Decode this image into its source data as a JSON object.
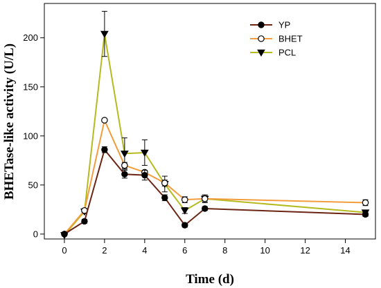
{
  "chart_data": {
    "type": "line",
    "title": "",
    "xlabel": "Time (d)",
    "ylabel": "BHETase-like activity (U/L)",
    "xlim": [
      -1,
      15.5
    ],
    "ylim": [
      -5,
      235
    ],
    "xticks": [
      "0",
      "2",
      "4",
      "6",
      "8",
      "10",
      "12",
      "14"
    ],
    "yticks": [
      "0",
      "50",
      "100",
      "150",
      "200"
    ],
    "grid": false,
    "legend_position": "top-right",
    "series": [
      {
        "name": "YP",
        "color": "#6b2412",
        "marker": "filled-circle",
        "x": [
          0,
          1,
          2,
          3,
          4,
          5,
          6,
          7,
          15
        ],
        "y": [
          0,
          13,
          86,
          61,
          60,
          37,
          9,
          26,
          20
        ],
        "err": [
          1,
          2,
          3,
          4,
          5,
          3,
          2,
          2,
          2
        ]
      },
      {
        "name": "BHET",
        "color": "#f39c3c",
        "marker": "open-circle",
        "x": [
          0,
          1,
          2,
          3,
          4,
          5,
          6,
          7,
          15
        ],
        "y": [
          0,
          24,
          116,
          70,
          63,
          52,
          35,
          36,
          32
        ],
        "err": [
          1,
          2,
          1,
          3,
          2,
          3,
          3,
          3,
          3
        ]
      },
      {
        "name": "PCL",
        "color": "#b5ba1e",
        "marker": "filled-triangle-down",
        "x": [
          0,
          1,
          2,
          3,
          4,
          5,
          6,
          7,
          15
        ],
        "y": [
          -1,
          23,
          204,
          82,
          83,
          51,
          24,
          36,
          22
        ],
        "err": [
          1,
          2,
          23,
          16,
          13,
          8,
          3,
          4,
          2
        ]
      }
    ]
  }
}
